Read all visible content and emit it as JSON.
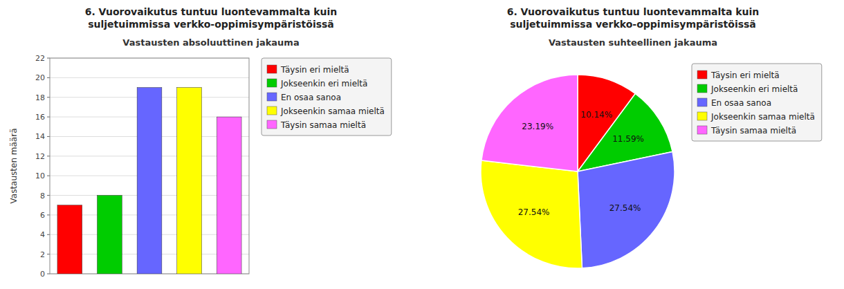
{
  "chart_data": [
    {
      "type": "bar",
      "title": "6. Vuorovaikutus tuntuu luontevammalta kuin\nsuljetuimmissa verkko-oppimisympäristöissä",
      "subtitle": "Vastausten absoluuttinen jakauma",
      "categories": [
        "Täysin eri mieltä",
        "Jokseenkin eri mieltä",
        "En osaa sanoa",
        "Jokseenkin samaa mieltä",
        "Täysin samaa mieltä"
      ],
      "values": [
        7,
        8,
        19,
        19,
        16
      ],
      "colors": [
        "#FF0000",
        "#00CC00",
        "#6666FF",
        "#FFFF00",
        "#FF66FF"
      ],
      "ylabel": "Vastausten määrä",
      "ylim": [
        0,
        22
      ],
      "yticks": [
        0,
        2,
        4,
        6,
        8,
        10,
        12,
        14,
        16,
        18,
        20,
        22
      ],
      "grid": true,
      "legend": "right",
      "tick_labels": "y"
    },
    {
      "type": "pie",
      "title": "6. Vuorovaikutus tuntuu luontevammalta kuin\nsuljetuimmissa verkko-oppimisympäristöissä",
      "subtitle": "Vastausten suhteellinen jakauma",
      "categories": [
        "Täysin eri mieltä",
        "Jokseenkin eri mieltä",
        "En osaa sanoa",
        "Jokseenkin samaa mieltä",
        "Täysin samaa mieltä"
      ],
      "values": [
        10.14,
        11.59,
        27.54,
        27.54,
        23.19
      ],
      "value_labels": [
        "10.14%",
        "11.59%",
        "27.54%",
        "27.54%",
        "23.19%"
      ],
      "colors": [
        "#FF0000",
        "#00CC00",
        "#6666FF",
        "#FFFF00",
        "#FF66FF"
      ],
      "data_labels": true,
      "legend": "right"
    }
  ]
}
